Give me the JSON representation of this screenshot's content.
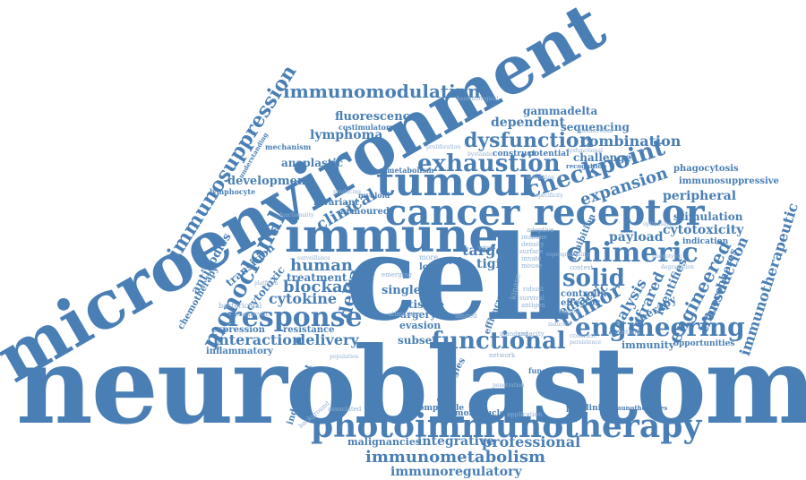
{
  "word_color": "#4a7fb5",
  "background": "#ffffff",
  "words": {
    "neuroblastoma": "neuroblastoma",
    "cell": "cell",
    "microenvironment": "microenvironment",
    "immune": "immune",
    "tumour": "tumour",
    "cancer": "cancer",
    "receptor": "receptor",
    "photoimmunotherapy": "photoimmunotherapy",
    "exhaustion": "exhaustion",
    "checkpoint": "checkpoint",
    "chimeric": "chimeric",
    "engineering": "engineering",
    "functional": "functional",
    "response": "response",
    "immunosuppression": "immunosuppression",
    "immunomodulation": "immunomodulation",
    "dysfunction": "dysfunction",
    "combination": "combination",
    "monoclonal": "monoclonal",
    "solid": "solid",
    "tumor": "tumor",
    "expansion": "expansion",
    "engineered": "engineered",
    "immunotherapeutic": "immunotherapeutic",
    "transduction": "transduction",
    "immunometabolism": "immunometabolism",
    "immunoregulatory": "immunoregulatory",
    "integrative": "integrative",
    "professional": "professional",
    "malignancies": "malignancies",
    "interaction": "interaction",
    "delivery": "delivery",
    "blockade": "blockade",
    "cytokine": "cytokine",
    "human": "human",
    "treatment": "treatment",
    "single": "single",
    "target": "target",
    "payload": "payload",
    "cytotoxicity": "cytotoxicity",
    "stimulation": "stimulation",
    "peripheral": "peripheral",
    "immunosuppressive": "immunosuppressive",
    "phagocytosis": "phagocytosis",
    "sequencing": "sequencing",
    "dependent": "dependent",
    "gammadelta": "gammadelta",
    "fluorescence": "fluorescence",
    "costimulatory": "costimulatory",
    "lymphoma": "lymphoma",
    "anaplastic": "anaplastic",
    "development": "development",
    "lymphocyte": "lymphocyte",
    "mechanism": "mechanism",
    "understanding": "understanding",
    "clinical": "clinical",
    "delta": "delta",
    "armoured": "armoured",
    "invariant": "invariant",
    "myeloid": "myeloid",
    "metabolism": "metabolism",
    "antibodies": "antibodies",
    "chemotherapy": "chemotherapy",
    "transition": "transition",
    "cytotoxic": "cytotoxic",
    "expression": "expression",
    "inflammatory": "inflammatory",
    "resistance": "resistance",
    "independent": "independent",
    "compatible": "compatible",
    "mononuclear": "mononuclear",
    "preclinical": "preclinical",
    "immunotherapies": "immunotherapies",
    "immunity": "immunity",
    "opportunities": "opportunities",
    "infrared": "infrared",
    "analysis": "analysis",
    "pediatric": "pediatric",
    "identifies": "identifies",
    "therapy": "therapy",
    "fluorophores": "fluorophores",
    "inhibition": "inhibition",
    "indication": "indication",
    "challenge": "challenge",
    "recognition": "recognition",
    "potential": "potential",
    "construct": "construct",
    "tissue": "tissue",
    "surgery": "surgery",
    "evasion": "evasion",
    "subset": "subset",
    "tigit": "tigit",
    "novel": "novel",
    "local": "local",
    "strategies": "strategies",
    "efficacy": "efficacy",
    "controlin": "controlin",
    "effector": "effector",
    "function": "function",
    "context": "context",
    "bactericidal": "bactericidal",
    "phagocytic": "phagocytic",
    "associated": "associated",
    "background": "background",
    "standard": "standard",
    "network": "network",
    "application": "application",
    "method": "method",
    "contrast": "contrast",
    "specificity": "specificity",
    "haematological": "haematological",
    "antimicrobial": "antimicrobial",
    "bystander": "bystander",
    "proliferation": "proliferation",
    "dysfunctional": "dysfunctional",
    "mitigation": "mitigation",
    "optimising": "optimising",
    "phenotypic": "phenotypic",
    "platform": "platform",
    "survival": "survival",
    "antigen": "antigen",
    "robust": "robust",
    "mouse": "mouse",
    "innate": "innate",
    "surface": "surface",
    "density": "density",
    "immune2": "immune",
    "adoptive": "adoptive",
    "producing": "producing",
    "functionality": "functionality",
    "surveillance": "surveillance",
    "more": "more",
    "vitro": "vitro",
    "limited": "limited",
    "stimulates": "stimulates",
    "emerging": "emerging",
    "capacity": "capacity",
    "population": "population",
    "penetration": "penetration",
    "persistence": "persistence",
    "induced": "induced",
    "capable": "capable",
    "degradation": "degradation",
    "reprogramming": "reprogramming",
    "kinase": "kinase"
  }
}
